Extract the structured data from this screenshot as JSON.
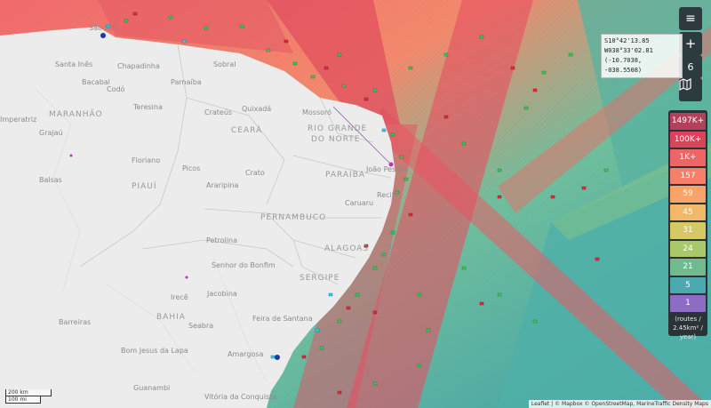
{
  "controls": {
    "menu_icon": "≡",
    "zoom_in_label": "+",
    "zoom_level": "6",
    "zoom_out_label": "−"
  },
  "coordinates": {
    "lat": "S10°42'13.85",
    "lon": "W038°33'02.81",
    "decimal": "(-10.7038, -038.5508)"
  },
  "legend": {
    "items": [
      {
        "label": "1497K+",
        "color": "#b5405c"
      },
      {
        "label": "100K+",
        "color": "#d9445b"
      },
      {
        "label": "1K+",
        "color": "#ef6566"
      },
      {
        "label": "157",
        "color": "#f5806a"
      },
      {
        "label": "59",
        "color": "#f8a36a"
      },
      {
        "label": "45",
        "color": "#f0b868"
      },
      {
        "label": "31",
        "color": "#d8c864"
      },
      {
        "label": "24",
        "color": "#a8c86a"
      },
      {
        "label": "21",
        "color": "#6fbb8e"
      },
      {
        "label": "5",
        "color": "#4aaab0"
      },
      {
        "label": "1",
        "color": "#8c6cc4"
      }
    ],
    "unit_line1": "(routes /",
    "unit_line2": "2.45km² /",
    "unit_line3": "year)"
  },
  "scale": {
    "km": "200 km",
    "mi": "100 mi"
  },
  "attribution": "Leaflet | © Mapbox © OpenStreetMap, MarineTraffic Density Maps",
  "regions": [
    {
      "label": "MARANHÃO"
    },
    {
      "label": "CEARÁ"
    },
    {
      "label": "PIAUÍ"
    },
    {
      "label": "RIO GRANDE"
    },
    {
      "label": "DO NORTE"
    },
    {
      "label": "PARAÍBA"
    },
    {
      "label": "PERNAMBUCO"
    },
    {
      "label": "ALAGOAS"
    },
    {
      "label": "SERGIPE"
    },
    {
      "label": "BAHIA"
    }
  ],
  "places": [
    {
      "label": "São Luís"
    },
    {
      "label": "Santa Inês"
    },
    {
      "label": "Bacabal"
    },
    {
      "label": "Chapadinha"
    },
    {
      "label": "Codó"
    },
    {
      "label": "Sobral"
    },
    {
      "label": "Parnaíba"
    },
    {
      "label": "Teresina"
    },
    {
      "label": "Crateús"
    },
    {
      "label": "Quixadá"
    },
    {
      "label": "Mossoró"
    },
    {
      "label": "Grajaú"
    },
    {
      "label": "Imperatriz"
    },
    {
      "label": "Floriano"
    },
    {
      "label": "Picos"
    },
    {
      "label": "Crato"
    },
    {
      "label": "Balsas"
    },
    {
      "label": "Araripina"
    },
    {
      "label": "João Pessoa"
    },
    {
      "label": "Recife"
    },
    {
      "label": "Caruaru"
    },
    {
      "label": "Petrolina"
    },
    {
      "label": "Senhor do Bonfim"
    },
    {
      "label": "Irecê"
    },
    {
      "label": "Jacobina"
    },
    {
      "label": "Barreiras"
    },
    {
      "label": "Seabra"
    },
    {
      "label": "Feira de Santana"
    },
    {
      "label": "Bom Jesus da Lapa"
    },
    {
      "label": "Amargosa"
    },
    {
      "label": "Guanambi"
    },
    {
      "label": "Vitória da Conquista"
    }
  ]
}
